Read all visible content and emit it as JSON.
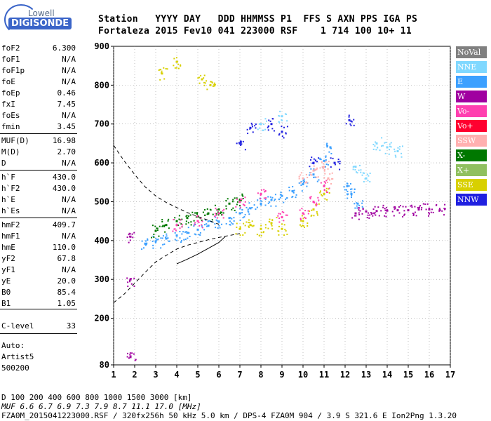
{
  "logo": {
    "top": "Lowell",
    "bottom": "DIGISONDE"
  },
  "header": {
    "labels": "Station   YYYY DAY   DDD HHMMSS P1  FFS S AXN PPS IGA PS",
    "values": "Fortaleza 2015 Fev10 041 223000 RSF    1 714 100 10+ 11"
  },
  "params": [
    {
      "label": "foF2",
      "value": "6.300"
    },
    {
      "label": "foF1",
      "value": "N/A"
    },
    {
      "label": "foF1p",
      "value": "N/A"
    },
    {
      "label": "foE",
      "value": "N/A"
    },
    {
      "label": "foEp",
      "value": "0.46"
    },
    {
      "label": "fxI",
      "value": "7.45"
    },
    {
      "label": "foEs",
      "value": "N/A"
    },
    {
      "label": "fmin",
      "value": "3.45"
    },
    {
      "label": "MUF(D)",
      "value": "16.98"
    },
    {
      "label": "M(D)",
      "value": "2.70"
    },
    {
      "label": "D",
      "value": "N/A"
    },
    {
      "label": "h`F",
      "value": "430.0"
    },
    {
      "label": "h`F2",
      "value": "430.0"
    },
    {
      "label": "h`E",
      "value": "N/A"
    },
    {
      "label": "h`Es",
      "value": "N/A"
    },
    {
      "label": "hmF2",
      "value": "409.7"
    },
    {
      "label": "hmF1",
      "value": "N/A"
    },
    {
      "label": "hmE",
      "value": "110.0"
    },
    {
      "label": "yF2",
      "value": "67.8"
    },
    {
      "label": "yF1",
      "value": "N/A"
    },
    {
      "label": "yE",
      "value": "20.0"
    },
    {
      "label": "B0",
      "value": "85.4"
    },
    {
      "label": "B1",
      "value": "1.05"
    },
    {
      "label": "C-level",
      "value": "33"
    }
  ],
  "notes": [
    "Auto:",
    "Artist5",
    "500200"
  ],
  "footer": {
    "d_line": "D     100  200  400  600  800 1000 1500 3000 [km]",
    "muf_line": "MUF   6.6  6.7  6.9  7.3  7.9  8.7 11.1 17.0 [MHz]",
    "file_line": "FZA0M_2015041223000.RSF / 320fx256h 50 kHz 5.0 km / DPS-4 FZA0M 904 / 3.9 S 321.6 E   Ion2Png 1.3.20"
  },
  "legend": [
    {
      "label": "NoVal",
      "color": "#808080"
    },
    {
      "label": "NNE",
      "color": "#80d8ff"
    },
    {
      "label": "E",
      "color": "#3ca0ff"
    },
    {
      "label": "W",
      "color": "#a000a0"
    },
    {
      "label": "Vo-",
      "color": "#ff40b0"
    },
    {
      "label": "Vo+",
      "color": "#ff0030"
    },
    {
      "label": "SSW",
      "color": "#ffb0b0"
    },
    {
      "label": "X-",
      "color": "#007800"
    },
    {
      "label": "X+",
      "color": "#90c060"
    },
    {
      "label": "SSE",
      "color": "#d8d000"
    },
    {
      "label": "NNW",
      "color": "#2020e0"
    }
  ],
  "chart_data": {
    "type": "scatter",
    "xlim": [
      1,
      17
    ],
    "ylim": [
      80,
      900
    ],
    "x_ticks": [
      1,
      2,
      3,
      4,
      5,
      6,
      7,
      8,
      9,
      10,
      11,
      12,
      13,
      14,
      15,
      16,
      17
    ],
    "y_ticks": [
      80,
      200,
      300,
      400,
      500,
      600,
      700,
      800,
      900
    ],
    "grid": true,
    "legend_position": "right",
    "series": [
      {
        "legend": "E",
        "points": [
          [
            2.5,
            392
          ],
          [
            3.0,
            398
          ],
          [
            3.5,
            405
          ],
          [
            4.0,
            413
          ],
          [
            4.5,
            420
          ],
          [
            5.0,
            428
          ],
          [
            5.5,
            438
          ],
          [
            6.0,
            448
          ],
          [
            6.5,
            458
          ],
          [
            7.0,
            470
          ],
          [
            7.5,
            483
          ],
          [
            8.0,
            495
          ],
          [
            8.5,
            505
          ],
          [
            9.0,
            515
          ],
          [
            9.5,
            527
          ],
          [
            10.0,
            545
          ],
          [
            10.5,
            570
          ],
          [
            11.0,
            605
          ],
          [
            11.3,
            640
          ],
          [
            12.1,
            540
          ],
          [
            12.3,
            520
          ],
          [
            12.6,
            495
          ]
        ]
      },
      {
        "legend": "X-",
        "points": [
          [
            3.0,
            425
          ],
          [
            3.5,
            440
          ],
          [
            4.0,
            450
          ],
          [
            4.5,
            458
          ],
          [
            5.0,
            462
          ],
          [
            5.5,
            470
          ],
          [
            6.0,
            480
          ],
          [
            6.5,
            495
          ],
          [
            7.0,
            505
          ]
        ]
      },
      {
        "legend": "SSE",
        "points": [
          [
            3.3,
            830
          ],
          [
            4.0,
            860
          ],
          [
            5.2,
            815
          ],
          [
            5.6,
            800
          ],
          [
            7.0,
            430
          ],
          [
            7.5,
            440
          ],
          [
            8.0,
            430
          ],
          [
            8.5,
            445
          ],
          [
            9.0,
            430
          ],
          [
            10.0,
            450
          ],
          [
            10.5,
            480
          ],
          [
            11.0,
            520
          ]
        ]
      },
      {
        "legend": "Vo-",
        "points": [
          [
            4.0,
            440
          ],
          [
            5.0,
            450
          ],
          [
            6.0,
            470
          ],
          [
            7.0,
            500
          ],
          [
            8.0,
            520
          ],
          [
            9.0,
            460
          ],
          [
            10.0,
            470
          ],
          [
            10.5,
            500
          ],
          [
            11.0,
            540
          ]
        ]
      },
      {
        "legend": "W",
        "points": [
          [
            12.5,
            470
          ],
          [
            13.0,
            475
          ],
          [
            13.5,
            476
          ],
          [
            14.0,
            477
          ],
          [
            14.5,
            478
          ],
          [
            15.0,
            478
          ],
          [
            15.5,
            480
          ],
          [
            16.0,
            480
          ],
          [
            16.5,
            478
          ],
          [
            1.8,
            410
          ],
          [
            1.8,
            300
          ],
          [
            1.8,
            100
          ]
        ]
      },
      {
        "legend": "NNW",
        "points": [
          [
            7.0,
            650
          ],
          [
            7.5,
            690
          ],
          [
            8.5,
            700
          ],
          [
            9.0,
            680
          ],
          [
            10.5,
            600
          ],
          [
            11.5,
            600
          ],
          [
            12.2,
            710
          ]
        ]
      },
      {
        "legend": "SSW",
        "points": [
          [
            10.0,
            560
          ],
          [
            10.5,
            580
          ],
          [
            11.0,
            590
          ],
          [
            11.2,
            560
          ]
        ]
      },
      {
        "legend": "NNE",
        "points": [
          [
            8.0,
            700
          ],
          [
            9.0,
            720
          ],
          [
            13.5,
            650
          ],
          [
            14.0,
            640
          ],
          [
            14.5,
            630
          ],
          [
            12.5,
            590
          ],
          [
            13.0,
            560
          ]
        ]
      }
    ],
    "dashed_curve": [
      [
        1.0,
        240
      ],
      [
        1.5,
        262
      ],
      [
        2.0,
        290
      ],
      [
        2.5,
        318
      ],
      [
        3.0,
        345
      ],
      [
        3.5,
        362
      ],
      [
        4.0,
        378
      ],
      [
        4.5,
        388
      ],
      [
        5.0,
        395
      ],
      [
        5.5,
        402
      ],
      [
        6.0,
        408
      ],
      [
        6.5,
        413
      ],
      [
        7.0,
        418
      ]
    ],
    "solid_curve": [
      [
        4.0,
        340
      ],
      [
        4.5,
        352
      ],
      [
        5.0,
        365
      ],
      [
        5.5,
        380
      ],
      [
        6.0,
        395
      ],
      [
        6.3,
        410
      ]
    ],
    "upper_dashed_curve": [
      [
        1.0,
        645
      ],
      [
        1.5,
        605
      ],
      [
        2.0,
        570
      ],
      [
        2.5,
        538
      ],
      [
        3.0,
        515
      ],
      [
        3.5,
        498
      ],
      [
        4.0,
        485
      ],
      [
        4.5,
        472
      ],
      [
        5.0,
        462
      ],
      [
        5.5,
        452
      ],
      [
        6.0,
        442
      ]
    ]
  }
}
